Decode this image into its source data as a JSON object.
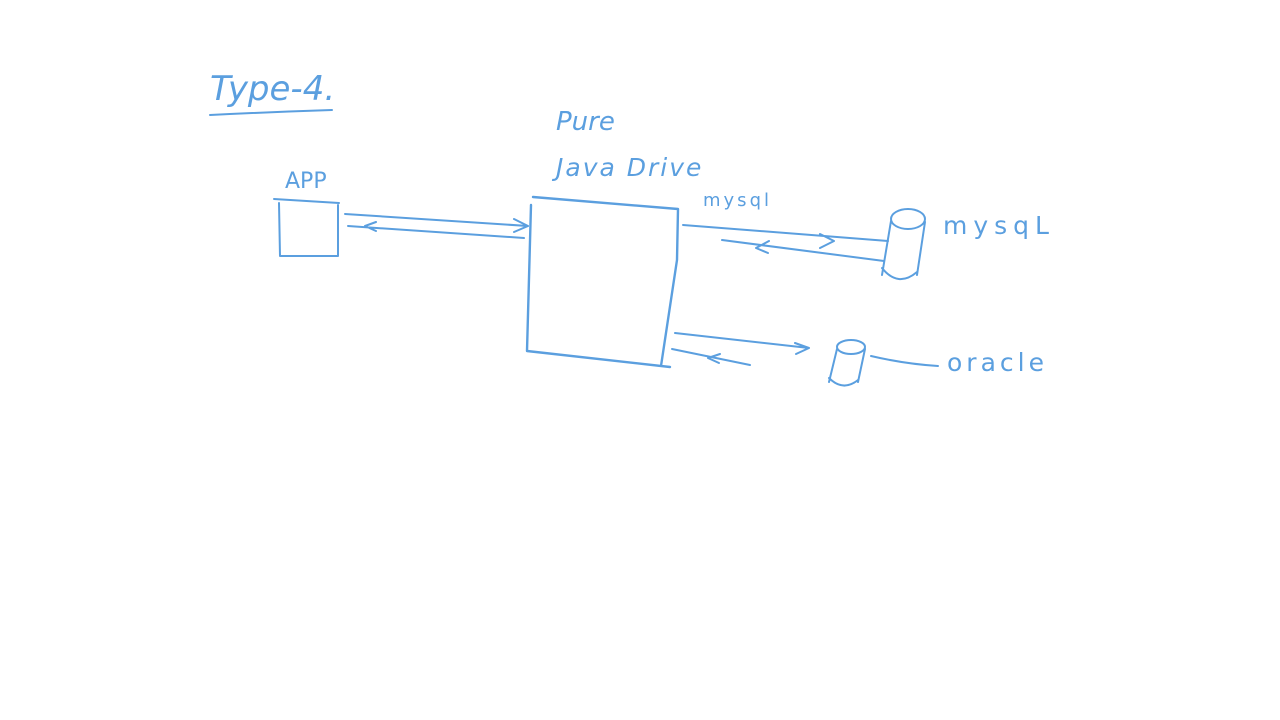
{
  "diagram": {
    "ink_color": "#5b9fdf",
    "background": "#ffffff",
    "title": "Type-4.",
    "driver_label_line1": "Pure",
    "driver_label_line2": "Java Drive",
    "driver_sublabel": "mysql",
    "app_label": "APP",
    "db_mysql_label": "mysqL",
    "db_oracle_label": "oracle"
  }
}
